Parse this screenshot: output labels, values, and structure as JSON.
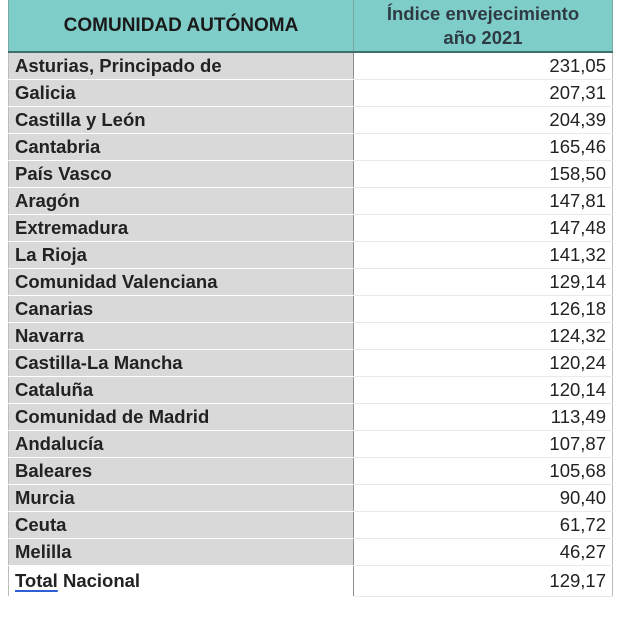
{
  "chart_data": {
    "type": "table",
    "columns": [
      "COMUNIDAD AUTÓNOMA",
      "Índice envejecimiento año 2021"
    ],
    "header_line1": "Índice envejecimiento",
    "header_line2": "año 2021",
    "rows": [
      {
        "name": "Asturias, Principado de",
        "value": "231,05"
      },
      {
        "name": "Galicia",
        "value": "207,31"
      },
      {
        "name": "Castilla y León",
        "value": "204,39"
      },
      {
        "name": "Cantabria",
        "value": "165,46"
      },
      {
        "name": "País Vasco",
        "value": "158,50"
      },
      {
        "name": "Aragón",
        "value": "147,81"
      },
      {
        "name": "Extremadura",
        "value": "147,48"
      },
      {
        "name": "La Rioja",
        "value": "141,32"
      },
      {
        "name": "Comunidad Valenciana",
        "value": "129,14"
      },
      {
        "name": "Canarias",
        "value": "126,18"
      },
      {
        "name": "Navarra",
        "value": "124,32"
      },
      {
        "name": "Castilla-La Mancha",
        "value": "120,24"
      },
      {
        "name": "Cataluña",
        "value": "120,14"
      },
      {
        "name": "Comunidad de Madrid",
        "value": "113,49"
      },
      {
        "name": "Andalucía",
        "value": "107,87"
      },
      {
        "name": "Baleares",
        "value": "105,68"
      },
      {
        "name": "Murcia",
        "value": "90,40"
      },
      {
        "name": "Ceuta",
        "value": "61,72"
      },
      {
        "name": "Melilla",
        "value": "46,27"
      }
    ],
    "total": {
      "name_part1": "Total",
      "name_part2": " Nacional",
      "value": "129,17"
    }
  }
}
